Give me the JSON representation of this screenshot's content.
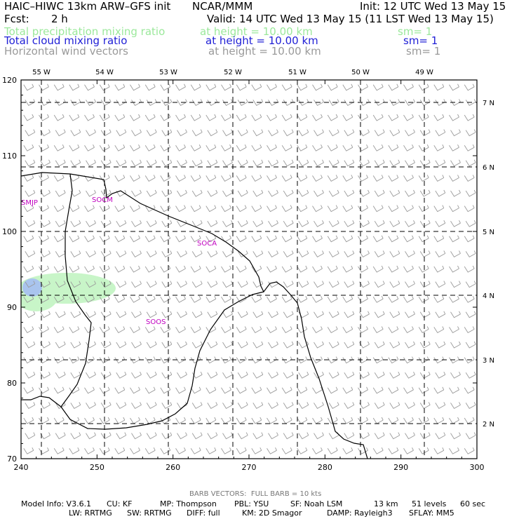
{
  "header": {
    "title": "HAIC–HIWC 13km ARW–GFS init",
    "center": "NCAR/MMM",
    "init": "Init: 12 UTC Wed 13 May 15",
    "fcst_label": "Fcst:",
    "fcst_value": "2 h",
    "valid": "Valid: 14 UTC Wed 13 May 15 (11 LST Wed 13 May 15)"
  },
  "fields": [
    {
      "name": "Total precipitation mixing ratio",
      "level": "at height = 10.00 km",
      "smooth": "sm= 1",
      "color": "#9be89b"
    },
    {
      "name": "Total cloud mixing ratio",
      "level": "at height = 10.00 km",
      "smooth": "sm= 1",
      "color": "#1f1fd6"
    },
    {
      "name": "Horizontal wind vectors",
      "level": "at height = 10.00 km",
      "smooth": "sm= 1",
      "color": "#9a9a9a"
    }
  ],
  "map": {
    "x_axis": {
      "ticks": [
        "240",
        "250",
        "260",
        "270",
        "280",
        "290",
        "300"
      ],
      "range": [
        240,
        300
      ]
    },
    "y_axis": {
      "ticks": [
        "70",
        "80",
        "90",
        "100",
        "110",
        "120"
      ],
      "range": [
        70,
        120
      ]
    },
    "lon_labels": [
      "55 W",
      "54 W",
      "53 W",
      "52 W",
      "51 W",
      "50 W",
      "49 W"
    ],
    "lat_labels": [
      "7 N",
      "6 N",
      "5 N",
      "4 N",
      "3 N",
      "2 N"
    ],
    "stations": [
      "SMJP",
      "SOCM",
      "SOCA",
      "SOOS"
    ],
    "colors": {
      "coast": "#000000",
      "station": "#c000c0",
      "barb": "#9a9a9a",
      "precip": "#c8f5c8",
      "cloud": "#a9c4ee"
    }
  },
  "footer": {
    "barb_note": "BARB VECTORS:  FULL BARB = 10 kts",
    "model_info": "Model Info: V3.6.1",
    "cu": "CU: KF",
    "mp": "MP: Thompson",
    "pbl": "PBL: YSU",
    "sf": "SF: Noah LSM",
    "res": "13 km",
    "levels": "51 levels",
    "dt": "60 sec",
    "lw": "LW: RRTMG",
    "sw": "SW: RRTMG",
    "diff": "DIFF: full",
    "km": "KM: 2D Smagor",
    "damp": "DAMP: Rayleigh3",
    "sflay": "SFLAY: MM5"
  }
}
